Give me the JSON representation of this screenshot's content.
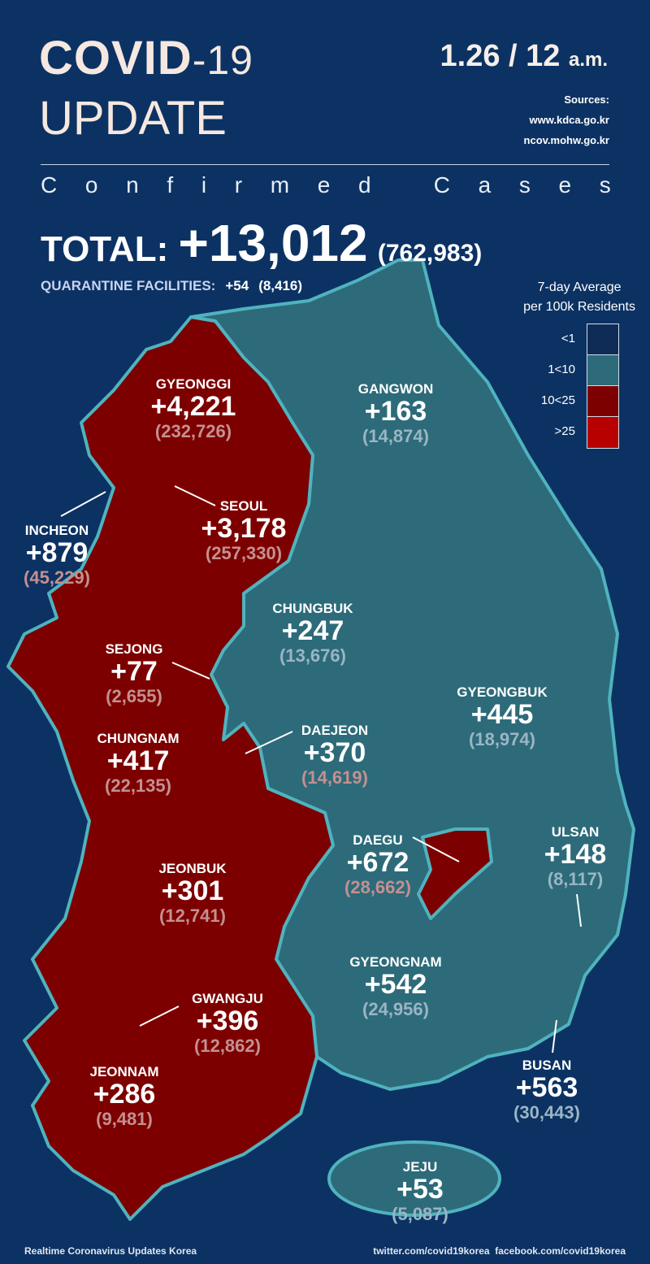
{
  "header": {
    "title_bold": "COVID",
    "title_light": "-19",
    "subtitle": "UPDATE",
    "date": "1.26 / 12",
    "time_suffix": "a.m.",
    "sources_label": "Sources:",
    "sources": [
      "www.kdca.go.kr",
      "ncov.mohw.go.kr"
    ],
    "section": [
      "C",
      "o",
      "n",
      "f",
      "i",
      "r",
      "m",
      "e",
      "d",
      "",
      "C",
      "a",
      "s",
      "e",
      "s"
    ]
  },
  "total": {
    "label": "TOTAL:",
    "new": "+13,012",
    "cumulative": "(762,983)"
  },
  "quarantine": {
    "label": "QUARANTINE FACILITIES:",
    "new": "+54",
    "cumulative": "(8,416)"
  },
  "legend": {
    "title_line1": "7-day Average",
    "title_line2": "per 100k Residents",
    "items": [
      {
        "label": "<1",
        "color": "#0e2c55"
      },
      {
        "label": "1<10",
        "color": "#2d6b7a"
      },
      {
        "label": "10<25",
        "color": "#7d0000"
      },
      {
        "label": ">25",
        "color": "#b80000"
      }
    ]
  },
  "colors": {
    "background": "#0c3263",
    "teal": "#2d6b7a",
    "dark_red": "#7d0000",
    "border": "#4fb3be"
  },
  "regions": [
    {
      "name": "GYEONGGI",
      "new": "+4,221",
      "total": "(232,726)",
      "level": "10<25"
    },
    {
      "name": "GANGWON",
      "new": "+163",
      "total": "(14,874)",
      "level": "1<10"
    },
    {
      "name": "SEOUL",
      "new": "+3,178",
      "total": "(257,330)",
      "level": "10<25"
    },
    {
      "name": "INCHEON",
      "new": "+879",
      "total": "(45,229)",
      "level": "10<25"
    },
    {
      "name": "CHUNGBUK",
      "new": "+247",
      "total": "(13,676)",
      "level": "1<10"
    },
    {
      "name": "SEJONG",
      "new": "+77",
      "total": "(2,655)",
      "level": "10<25"
    },
    {
      "name": "GYEONGBUK",
      "new": "+445",
      "total": "(18,974)",
      "level": "1<10"
    },
    {
      "name": "CHUNGNAM",
      "new": "+417",
      "total": "(22,135)",
      "level": "10<25"
    },
    {
      "name": "DAEJEON",
      "new": "+370",
      "total": "(14,619)",
      "level": "10<25"
    },
    {
      "name": "DAEGU",
      "new": "+672",
      "total": "(28,662)",
      "level": "10<25"
    },
    {
      "name": "ULSAN",
      "new": "+148",
      "total": "(8,117)",
      "level": "1<10"
    },
    {
      "name": "JEONBUK",
      "new": "+301",
      "total": "(12,741)",
      "level": "10<25"
    },
    {
      "name": "GYEONGNAM",
      "new": "+542",
      "total": "(24,956)",
      "level": "1<10"
    },
    {
      "name": "GWANGJU",
      "new": "+396",
      "total": "(12,862)",
      "level": "10<25"
    },
    {
      "name": "JEONNAM",
      "new": "+286",
      "total": "(9,481)",
      "level": "10<25"
    },
    {
      "name": "BUSAN",
      "new": "+563",
      "total": "(30,443)",
      "level": "1<10"
    },
    {
      "name": "JEJU",
      "new": "+53",
      "total": "(5,087)",
      "level": "1<10"
    }
  ],
  "footer": {
    "left": "Realtime Coronavirus Updates Korea",
    "right": "twitter.com/covid19korea  facebook.com/covid19korea"
  }
}
